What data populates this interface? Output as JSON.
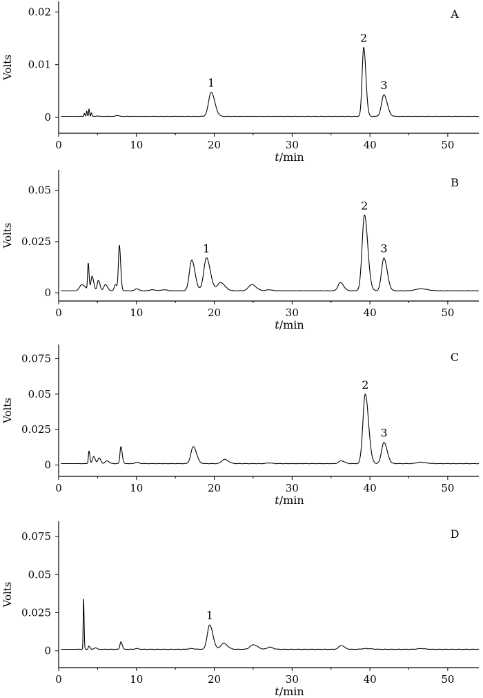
{
  "chart_data": [
    {
      "type": "line",
      "panel_label": "A",
      "xlabel_italic": "t",
      "xlabel_unit": "/min",
      "ylabel": "Volts",
      "xlim": [
        0,
        54
      ],
      "ylim": [
        -0.003,
        0.022
      ],
      "x_ticks": [
        "0",
        "10",
        "20",
        "30",
        "40",
        "50"
      ],
      "y_ticks": [
        {
          "value": 0,
          "label": "0"
        },
        {
          "value": 0.01,
          "label": "0.01"
        },
        {
          "value": 0.02,
          "label": "0.02"
        }
      ],
      "baseline": 0.0002,
      "peaks": [
        {
          "x": 3.3,
          "y": 0.0008,
          "w": 0.05
        },
        {
          "x": 3.6,
          "y": 0.0012,
          "w": 0.05
        },
        {
          "x": 3.9,
          "y": 0.0016,
          "w": 0.05
        },
        {
          "x": 4.2,
          "y": 0.0009,
          "w": 0.05
        },
        {
          "x": 5.0,
          "y": 0.0003,
          "w": 0.1
        },
        {
          "x": 7.5,
          "y": 0.0004,
          "w": 0.15
        },
        {
          "x": 19.6,
          "y": 0.0048,
          "w": 0.33
        },
        {
          "x": 39.2,
          "y": 0.0133,
          "w": 0.2
        },
        {
          "x": 41.8,
          "y": 0.0043,
          "w": 0.3
        }
      ],
      "annotations": [
        {
          "text": "1",
          "x": 19.6,
          "y": 0.0048
        },
        {
          "text": "2",
          "x": 39.2,
          "y": 0.0133
        },
        {
          "text": "3",
          "x": 41.8,
          "y": 0.0043
        }
      ]
    },
    {
      "type": "line",
      "panel_label": "B",
      "xlabel_italic": "t",
      "xlabel_unit": "/min",
      "ylabel": "Volts",
      "xlim": [
        0,
        54
      ],
      "ylim": [
        -0.004,
        0.06
      ],
      "x_ticks": [
        "0",
        "10",
        "20",
        "30",
        "40",
        "50"
      ],
      "y_ticks": [
        {
          "value": 0,
          "label": "0"
        },
        {
          "value": 0.025,
          "label": "0.025"
        },
        {
          "value": 0.05,
          "label": "0.05"
        }
      ],
      "baseline": 0.001,
      "peaks": [
        {
          "x": 3.0,
          "y": 0.004,
          "w": 0.3
        },
        {
          "x": 3.8,
          "y": 0.014,
          "w": 0.08
        },
        {
          "x": 4.3,
          "y": 0.008,
          "w": 0.15
        },
        {
          "x": 5.1,
          "y": 0.006,
          "w": 0.15
        },
        {
          "x": 6.0,
          "y": 0.004,
          "w": 0.2
        },
        {
          "x": 7.3,
          "y": 0.004,
          "w": 0.15
        },
        {
          "x": 7.8,
          "y": 0.023,
          "w": 0.12
        },
        {
          "x": 10.0,
          "y": 0.002,
          "w": 0.2
        },
        {
          "x": 12.0,
          "y": 0.0015,
          "w": 0.3
        },
        {
          "x": 13.5,
          "y": 0.0015,
          "w": 0.3
        },
        {
          "x": 17.1,
          "y": 0.016,
          "w": 0.3
        },
        {
          "x": 19.0,
          "y": 0.017,
          "w": 0.35
        },
        {
          "x": 20.8,
          "y": 0.005,
          "w": 0.4
        },
        {
          "x": 24.8,
          "y": 0.004,
          "w": 0.4
        },
        {
          "x": 27.0,
          "y": 0.0015,
          "w": 0.3
        },
        {
          "x": 36.2,
          "y": 0.005,
          "w": 0.3
        },
        {
          "x": 39.3,
          "y": 0.038,
          "w": 0.3
        },
        {
          "x": 41.8,
          "y": 0.017,
          "w": 0.3
        },
        {
          "x": 46.5,
          "y": 0.002,
          "w": 0.6
        },
        {
          "x": 47.8,
          "y": 0.001,
          "w": 0.4
        }
      ],
      "annotations": [
        {
          "text": "1",
          "x": 19.0,
          "y": 0.017
        },
        {
          "text": "2",
          "x": 39.3,
          "y": 0.038
        },
        {
          "text": "3",
          "x": 41.8,
          "y": 0.017
        }
      ]
    },
    {
      "type": "line",
      "panel_label": "C",
      "xlabel_italic": "t",
      "xlabel_unit": "/min",
      "ylabel": "Volts",
      "xlim": [
        0,
        54
      ],
      "ylim": [
        -0.008,
        0.085
      ],
      "x_ticks": [
        "0",
        "10",
        "20",
        "30",
        "40",
        "50"
      ],
      "y_ticks": [
        {
          "value": 0,
          "label": "0"
        },
        {
          "value": 0.025,
          "label": "0.025"
        },
        {
          "value": 0.05,
          "label": "0.05"
        },
        {
          "value": 0.075,
          "label": "0.075"
        }
      ],
      "baseline": 0.001,
      "peaks": [
        {
          "x": 3.9,
          "y": 0.01,
          "w": 0.08
        },
        {
          "x": 4.5,
          "y": 0.006,
          "w": 0.15
        },
        {
          "x": 5.2,
          "y": 0.005,
          "w": 0.15
        },
        {
          "x": 6.2,
          "y": 0.003,
          "w": 0.2
        },
        {
          "x": 8.0,
          "y": 0.013,
          "w": 0.12
        },
        {
          "x": 10.0,
          "y": 0.002,
          "w": 0.2
        },
        {
          "x": 17.3,
          "y": 0.013,
          "w": 0.3
        },
        {
          "x": 21.3,
          "y": 0.004,
          "w": 0.35
        },
        {
          "x": 27.0,
          "y": 0.0015,
          "w": 0.3
        },
        {
          "x": 36.3,
          "y": 0.003,
          "w": 0.3
        },
        {
          "x": 39.4,
          "y": 0.05,
          "w": 0.3
        },
        {
          "x": 41.8,
          "y": 0.016,
          "w": 0.3
        },
        {
          "x": 46.5,
          "y": 0.002,
          "w": 0.5
        }
      ],
      "annotations": [
        {
          "text": "2",
          "x": 39.4,
          "y": 0.05
        },
        {
          "text": "3",
          "x": 41.8,
          "y": 0.016
        }
      ]
    },
    {
      "type": "line",
      "panel_label": "D",
      "xlabel_italic": "t",
      "xlabel_unit": "/min",
      "ylabel": "Volts",
      "xlim": [
        0,
        54
      ],
      "ylim": [
        -0.011,
        0.085
      ],
      "x_ticks": [
        "0",
        "10",
        "20",
        "30",
        "40",
        "50"
      ],
      "y_ticks": [
        {
          "value": 0,
          "label": "0"
        },
        {
          "value": 0.025,
          "label": "0.025"
        },
        {
          "value": 0.05,
          "label": "0.05"
        },
        {
          "value": 0.075,
          "label": "0.075"
        }
      ],
      "baseline": 0.001,
      "peaks": [
        {
          "x": 3.2,
          "y": 0.034,
          "w": 0.05
        },
        {
          "x": 3.9,
          "y": 0.003,
          "w": 0.1
        },
        {
          "x": 4.7,
          "y": 0.002,
          "w": 0.15
        },
        {
          "x": 8.0,
          "y": 0.006,
          "w": 0.12
        },
        {
          "x": 10.0,
          "y": 0.0015,
          "w": 0.2
        },
        {
          "x": 17.0,
          "y": 0.0015,
          "w": 0.3
        },
        {
          "x": 19.4,
          "y": 0.017,
          "w": 0.3
        },
        {
          "x": 21.2,
          "y": 0.005,
          "w": 0.35
        },
        {
          "x": 25.0,
          "y": 0.004,
          "w": 0.4
        },
        {
          "x": 27.1,
          "y": 0.0025,
          "w": 0.3
        },
        {
          "x": 36.3,
          "y": 0.0035,
          "w": 0.3
        },
        {
          "x": 39.5,
          "y": 0.0015,
          "w": 0.5
        },
        {
          "x": 46.5,
          "y": 0.0015,
          "w": 0.4
        }
      ],
      "annotations": [
        {
          "text": "1",
          "x": 19.4,
          "y": 0.017
        }
      ]
    }
  ]
}
